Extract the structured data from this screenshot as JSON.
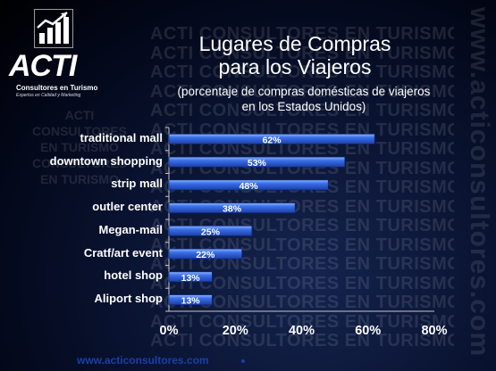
{
  "watermark": {
    "repeat_text": "ACTI CONSULTORES EN TURISMO",
    "side_text": "www.acticonsultores.com",
    "left_lines": [
      "ACTI",
      "CONSULTORES",
      "EN TURISMO",
      "CONSULTORES",
      "EN TURISMO"
    ]
  },
  "logo": {
    "name": "ACTI",
    "line1": "Consultores en Turismo",
    "line2": "Expertos en Calidad y Marketing",
    "icon": "bar-chart-arrow-icon"
  },
  "title": {
    "line1": "Lugares de Compras",
    "line2": "para los Viajeros"
  },
  "subtitle": {
    "line1": "(porcentaje de compras domésticas de viajeros",
    "line2": "en los Estados Unidos)"
  },
  "footer": "www.acticonsultores.com",
  "colors": {
    "bar": "#2b5fd6",
    "bar_highlight": "#8ab4ff",
    "axis": "#c8c8c8"
  },
  "chart_data": {
    "type": "bar",
    "orientation": "horizontal",
    "title": "Lugares de Compras para los Viajeros",
    "subtitle": "(porcentaje de compras domésticas de viajeros en los Estados Unidos)",
    "categories": [
      "traditional mall",
      "downtown shopping",
      "strip mall",
      "outler center",
      "Megan-mail",
      "Cratf/art event",
      "hotel shop",
      "Aliport shop"
    ],
    "values": [
      62,
      53,
      48,
      38,
      25,
      22,
      13,
      13
    ],
    "data_labels": [
      "62%",
      "53%",
      "48%",
      "38%",
      "25%",
      "22%",
      "13%",
      "13%"
    ],
    "x_ticks": [
      "0%",
      "20%",
      "40%",
      "60%",
      "80%"
    ],
    "xlim": [
      0,
      80
    ],
    "grid": false,
    "legend": "none"
  }
}
